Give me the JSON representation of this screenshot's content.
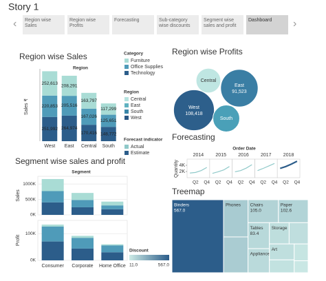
{
  "story": {
    "title": "Story 1",
    "tabs": [
      "Region wise Sales",
      "Region wise Profits",
      "Forecasting",
      "Sub-category wise discounts",
      "Segment wise sales and profit",
      "Dashboard"
    ]
  },
  "chart_data": [
    {
      "type": "stacked_bar",
      "title": "Region wise Sales",
      "x_header": "Region",
      "ylabel": "Sales ₹",
      "categories": [
        "West",
        "East",
        "Central",
        "South"
      ],
      "ylim": [
        0,
        750000
      ],
      "legend_title": "Category",
      "series": [
        {
          "name": "Furniture",
          "color": "#a9dcd5",
          "values": [
            252613,
            208291,
            163797,
            117299
          ],
          "value_labels": [
            "252,613",
            "208,291",
            "163,797",
            "117,299"
          ]
        },
        {
          "name": "Office Supplies",
          "color": "#4f9bb9",
          "values": [
            220853,
            205516,
            167026,
            125651
          ],
          "value_labels": [
            "220,853",
            "205,516",
            "167,026",
            "125,651"
          ]
        },
        {
          "name": "Technology",
          "color": "#2c5d8a",
          "values": [
            251992,
            264974,
            170416,
            148772
          ],
          "value_labels": [
            "251,992",
            "264,974",
            "170,416",
            "148,772"
          ]
        }
      ],
      "legends": [
        {
          "title": "Region",
          "items": [
            {
              "name": "Central",
              "color": "#b6e3df"
            },
            {
              "name": "East",
              "color": "#5fb2c0"
            },
            {
              "name": "South",
              "color": "#3a86a8"
            },
            {
              "name": "West",
              "color": "#2a5783"
            }
          ]
        }
      ]
    },
    {
      "type": "bubble",
      "title": "Region wise Profits",
      "categories": [
        "West",
        "East",
        "Central",
        "South"
      ],
      "values": [
        108418,
        91523,
        39706,
        46749
      ],
      "value_labels": [
        "108,418",
        "91,523",
        null,
        null
      ],
      "colors": [
        "#2d5f8b",
        "#3a7ea4",
        "#bfe6e2",
        "#4aa0b8"
      ]
    },
    {
      "type": "line",
      "title": "Forecasting",
      "x_header": "Order Date",
      "ylabel": "Quantity",
      "columns": [
        "2014",
        "2015",
        "2016",
        "2017",
        "2018"
      ],
      "xticks": [
        "Q2",
        "Q4"
      ],
      "ylim": [
        0,
        6000
      ],
      "yticks": [
        {
          "value": 2000,
          "label": "2K"
        },
        {
          "value": 4000,
          "label": "4K"
        }
      ],
      "legend_title": "Forecast indicator",
      "series": [
        {
          "name": "Actual",
          "color": "#8fc9c9",
          "values": [
            1500,
            1700,
            2300,
            3300,
            1400,
            1900,
            2500,
            3600,
            1900,
            2300,
            3100,
            4200,
            2300,
            3000,
            3800,
            4600,
            null,
            null,
            null,
            null
          ]
        },
        {
          "name": "Estimate",
          "color": "#2c5d8a",
          "values": [
            null,
            null,
            null,
            null,
            null,
            null,
            null,
            null,
            null,
            null,
            null,
            null,
            null,
            null,
            null,
            null,
            3000,
            3600,
            4400,
            5300
          ]
        }
      ]
    },
    {
      "type": "stacked_bar_panes",
      "title": "Segment wise sales and profit",
      "x_header": "Segment",
      "categories": [
        "Consumer",
        "Corporate",
        "Home Office"
      ],
      "panes": [
        {
          "ylabel": "Sales",
          "ylim": [
            0,
            1250000
          ],
          "yticks": [
            {
              "value": 0,
              "label": "0K"
            },
            {
              "value": 500000,
              "label": "500K"
            },
            {
              "value": 1000000,
              "label": "1000K"
            }
          ],
          "series": [
            {
              "color": "#a9dcd5",
              "values": [
                391049,
                229019,
                121930
              ]
            },
            {
              "color": "#4f9bb9",
              "values": [
                363952,
                235502,
                124418
              ]
            },
            {
              "color": "#2c5d8a",
              "values": [
                406400,
                246450,
                183743
              ]
            }
          ]
        },
        {
          "ylabel": "Profit",
          "ylim": [
            0,
            150000
          ],
          "yticks": [
            {
              "value": 0,
              "label": "0K"
            },
            {
              "value": 100000,
              "label": "100K"
            }
          ],
          "series": [
            {
              "color": "#a9dcd5",
              "values": [
                6991,
                7584,
                3875
              ]
            },
            {
              "color": "#4f9bb9",
              "values": [
                56330,
                40227,
                25933
              ]
            },
            {
              "color": "#2c5d8a",
              "values": [
                70797,
                44167,
                30370
              ]
            }
          ]
        }
      ]
    },
    {
      "type": "treemap",
      "title": "Treemap",
      "categories": [
        "Binders",
        "Phones",
        null,
        "Chairs",
        "Paper",
        "Tables",
        "Appliances",
        "Storage",
        null,
        "Art",
        null,
        null,
        null
      ],
      "values": [
        567,
        137.4,
        132.4,
        105,
        102.6,
        83.4,
        77.6,
        63.2,
        60.8,
        59.6,
        48.1,
        35.2,
        25
      ],
      "value_labels": [
        "567.0",
        null,
        null,
        "105.0",
        "102.6",
        "83.4",
        null,
        null,
        null,
        null,
        null,
        null,
        null
      ],
      "colorlim": [
        11,
        567
      ],
      "colors": [
        "#cdebe6",
        "#2c5d8a"
      ],
      "legend_title": "Discount",
      "legend_ticks": [
        {
          "value": 11,
          "label": "11.0"
        },
        {
          "value": 567,
          "label": "567.0"
        }
      ]
    }
  ]
}
